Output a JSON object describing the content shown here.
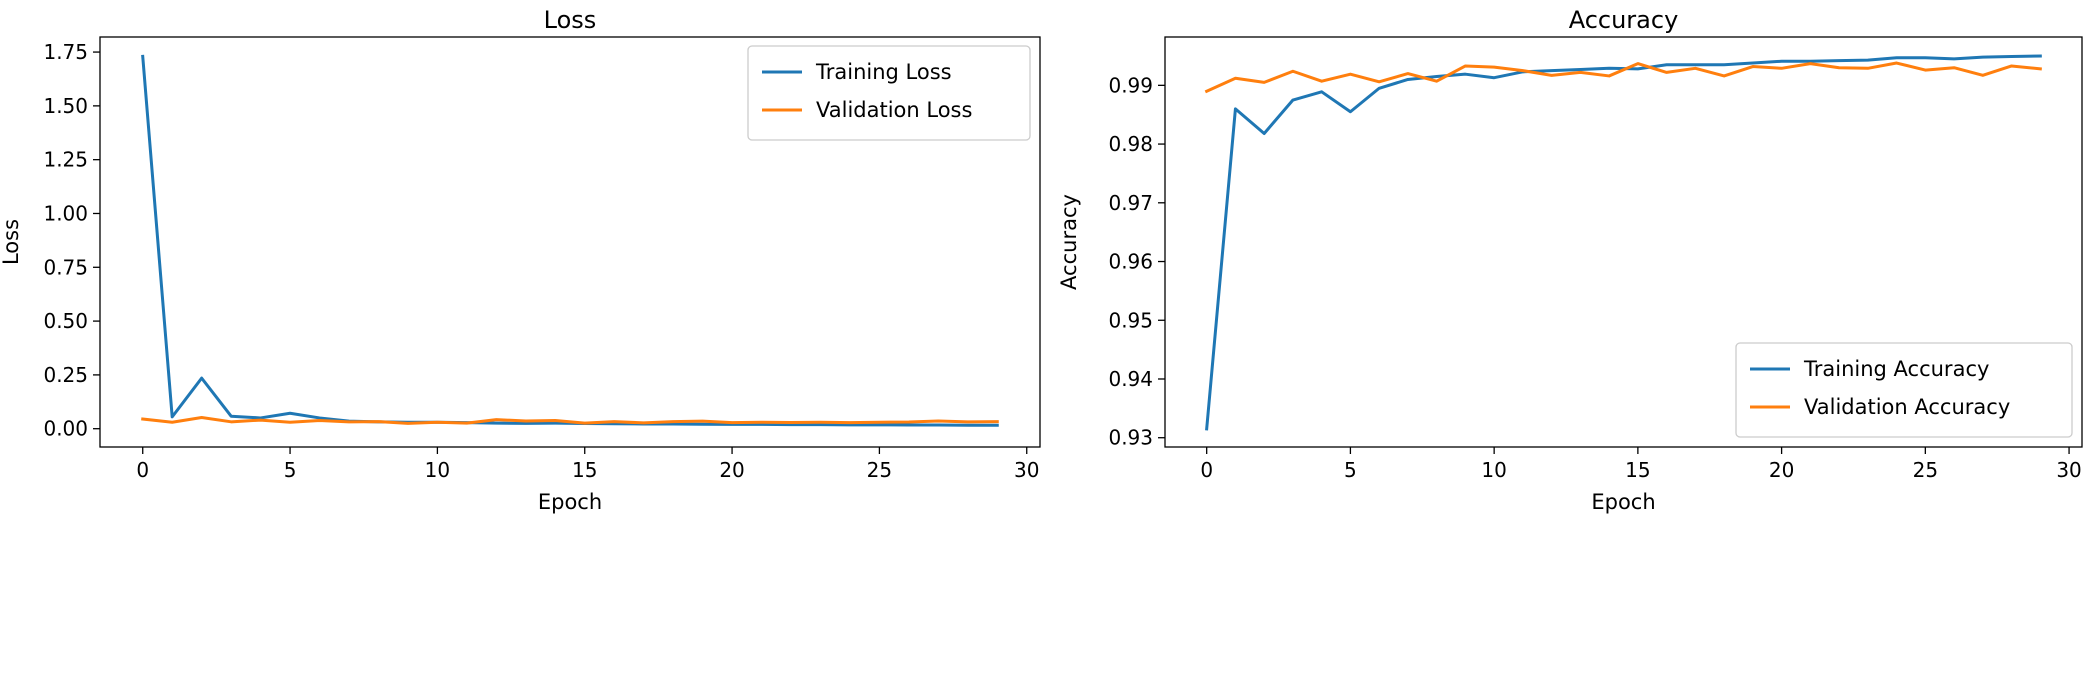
{
  "colors": {
    "training": "#1f77b4",
    "validation": "#ff7f0e"
  },
  "chart_data": [
    {
      "type": "line",
      "title": "Loss",
      "xlabel": "Epoch",
      "ylabel": "Loss",
      "xlim": [
        -1.45,
        30.45
      ],
      "ylim": [
        -0.085,
        1.82
      ],
      "xticks": [
        0,
        5,
        10,
        15,
        20,
        25,
        30
      ],
      "xtick_labels": [
        "0",
        "5",
        "10",
        "15",
        "20",
        "25",
        "30"
      ],
      "yticks": [
        0.0,
        0.25,
        0.5,
        0.75,
        1.0,
        1.25,
        1.5,
        1.75
      ],
      "ytick_labels": [
        "0.00",
        "0.25",
        "0.50",
        "0.75",
        "1.00",
        "1.25",
        "1.50",
        "1.75"
      ],
      "legend_position": "upper-right",
      "x": [
        0,
        1,
        2,
        3,
        4,
        5,
        6,
        7,
        8,
        9,
        10,
        11,
        12,
        13,
        14,
        15,
        16,
        17,
        18,
        19,
        20,
        21,
        22,
        23,
        24,
        25,
        26,
        27,
        28,
        29
      ],
      "series": [
        {
          "name": "Training Loss",
          "color_key": "training",
          "values": [
            1.73,
            0.055,
            0.235,
            0.058,
            0.05,
            0.072,
            0.05,
            0.035,
            0.032,
            0.03,
            0.03,
            0.028,
            0.026,
            0.025,
            0.026,
            0.024,
            0.023,
            0.022,
            0.022,
            0.021,
            0.02,
            0.02,
            0.019,
            0.019,
            0.018,
            0.018,
            0.017,
            0.017,
            0.016,
            0.016
          ]
        },
        {
          "name": "Validation Loss",
          "color_key": "validation",
          "values": [
            0.045,
            0.03,
            0.052,
            0.032,
            0.04,
            0.03,
            0.038,
            0.032,
            0.033,
            0.025,
            0.03,
            0.026,
            0.042,
            0.036,
            0.038,
            0.026,
            0.033,
            0.027,
            0.033,
            0.035,
            0.028,
            0.03,
            0.029,
            0.03,
            0.028,
            0.03,
            0.031,
            0.036,
            0.032,
            0.033
          ]
        }
      ]
    },
    {
      "type": "line",
      "title": "Accuracy",
      "xlabel": "Epoch",
      "ylabel": "Accuracy",
      "xlim": [
        -1.45,
        30.45
      ],
      "ylim": [
        0.92842,
        0.99823
      ],
      "xticks": [
        0,
        5,
        10,
        15,
        20,
        25,
        30
      ],
      "xtick_labels": [
        "0",
        "5",
        "10",
        "15",
        "20",
        "25",
        "30"
      ],
      "yticks": [
        0.93,
        0.94,
        0.95,
        0.96,
        0.97,
        0.98,
        0.99
      ],
      "ytick_labels": [
        "0.93",
        "0.94",
        "0.95",
        "0.96",
        "0.97",
        "0.98",
        "0.99"
      ],
      "legend_position": "lower-right",
      "x": [
        0,
        1,
        2,
        3,
        4,
        5,
        6,
        7,
        8,
        9,
        10,
        11,
        12,
        13,
        14,
        15,
        16,
        17,
        18,
        19,
        20,
        21,
        22,
        23,
        24,
        25,
        26,
        27,
        28,
        29
      ],
      "series": [
        {
          "name": "Training Accuracy",
          "color_key": "training",
          "values": [
            0.9315,
            0.986,
            0.9818,
            0.9875,
            0.9889,
            0.9855,
            0.9895,
            0.991,
            0.9915,
            0.9919,
            0.9913,
            0.9923,
            0.9925,
            0.9927,
            0.9929,
            0.9928,
            0.9935,
            0.9935,
            0.9935,
            0.9938,
            0.9941,
            0.9941,
            0.9942,
            0.9943,
            0.9947,
            0.9947,
            0.9945,
            0.9948,
            0.9949,
            0.995
          ]
        },
        {
          "name": "Validation Accuracy",
          "color_key": "validation",
          "values": [
            0.989,
            0.9912,
            0.9905,
            0.9924,
            0.9907,
            0.9919,
            0.9906,
            0.992,
            0.9907,
            0.9933,
            0.9931,
            0.9925,
            0.9917,
            0.9922,
            0.9916,
            0.9937,
            0.9922,
            0.9929,
            0.9916,
            0.9932,
            0.9929,
            0.9937,
            0.993,
            0.9929,
            0.9938,
            0.9926,
            0.993,
            0.9917,
            0.9933,
            0.9928
          ]
        }
      ]
    }
  ]
}
